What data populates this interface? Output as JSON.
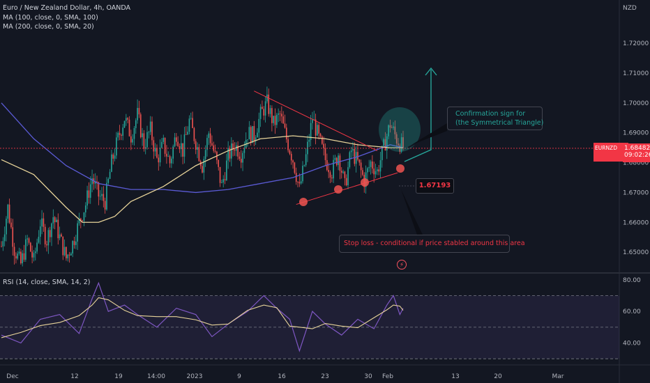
{
  "legend": {
    "title": "Euro / New Zealand Dollar, 4h, OANDA",
    "ma1": "MA (100, close, 0, SMA, 100)",
    "ma2": "MA (200, close, 0, SMA, 20)",
    "rsi": "RSI (14, close, SMA, 14, 2)"
  },
  "currency_label": "NZD",
  "price_badge": {
    "symbol": "EURNZD",
    "price": "1.68482",
    "countdown": "09:02:26"
  },
  "annotations": {
    "confirmation": [
      "Confirmation sign for",
      "(the Symmetrical Triangle)"
    ],
    "stop_loss": "Stop loss - conditional if price stabled around this area",
    "stop_level": "1.67193"
  },
  "colors": {
    "background": "#131722",
    "up": "#26a69a",
    "down": "#ef5350",
    "ma100": "#e8d49a",
    "ma200": "#5b5bd6",
    "rsi_line": "#7e57c2",
    "rsi_ma": "#e8d49a",
    "triangle": "#f23645",
    "arrow": "#26a69a",
    "circle_fill": "#26a69a"
  },
  "chart_data": {
    "type": "candlestick",
    "symbol": "EURNZD",
    "timeframe": "4h",
    "x_tick_labels": [
      "Dec",
      "12",
      "19",
      "14:00",
      "2023",
      "9",
      "16",
      "23",
      "30",
      "Feb",
      "13",
      "20",
      "Mar"
    ],
    "price_axis": {
      "ticks": [
        "1.72000",
        "1.71000",
        "1.70000",
        "1.69000",
        "1.68000",
        "1.67000",
        "1.66000",
        "1.65000"
      ],
      "ylim": [
        1.6435,
        1.7345
      ]
    },
    "rsi_axis": {
      "ticks": [
        "80.00",
        "60.00",
        "40.00"
      ],
      "ylim": [
        27,
        83
      ],
      "bands": [
        30,
        50,
        70
      ]
    },
    "close_path": [
      [
        0,
        1.652
      ],
      [
        4,
        1.665
      ],
      [
        8,
        1.651
      ],
      [
        12,
        1.646
      ],
      [
        16,
        1.654
      ],
      [
        20,
        1.647
      ],
      [
        24,
        1.66
      ],
      [
        28,
        1.654
      ],
      [
        32,
        1.662
      ],
      [
        36,
        1.655
      ],
      [
        40,
        1.648
      ],
      [
        44,
        1.653
      ],
      [
        48,
        1.66
      ],
      [
        52,
        1.666
      ],
      [
        56,
        1.675
      ],
      [
        60,
        1.669
      ],
      [
        64,
        1.667
      ],
      [
        68,
        1.68
      ],
      [
        72,
        1.688
      ],
      [
        76,
        1.695
      ],
      [
        80,
        1.689
      ],
      [
        84,
        1.696
      ],
      [
        88,
        1.686
      ],
      [
        92,
        1.691
      ],
      [
        96,
        1.681
      ],
      [
        100,
        1.686
      ],
      [
        104,
        1.68
      ],
      [
        108,
        1.69
      ],
      [
        112,
        1.684
      ],
      [
        116,
        1.694
      ],
      [
        120,
        1.687
      ],
      [
        124,
        1.679
      ],
      [
        128,
        1.69
      ],
      [
        132,
        1.682
      ],
      [
        136,
        1.672
      ],
      [
        140,
        1.682
      ],
      [
        144,
        1.686
      ],
      [
        148,
        1.683
      ],
      [
        152,
        1.69
      ],
      [
        156,
        1.689
      ],
      [
        160,
        1.696
      ],
      [
        164,
        1.7
      ],
      [
        168,
        1.693
      ],
      [
        172,
        1.696
      ],
      [
        176,
        1.688
      ],
      [
        180,
        1.681
      ],
      [
        184,
        1.671
      ],
      [
        188,
        1.682
      ],
      [
        192,
        1.695
      ],
      [
        196,
        1.688
      ],
      [
        200,
        1.681
      ],
      [
        204,
        1.677
      ],
      [
        208,
        1.683
      ],
      [
        212,
        1.672
      ],
      [
        216,
        1.684
      ],
      [
        220,
        1.68
      ],
      [
        224,
        1.674
      ],
      [
        228,
        1.68
      ],
      [
        232,
        1.677
      ],
      [
        236,
        1.685
      ],
      [
        240,
        1.693
      ],
      [
        244,
        1.688
      ],
      [
        248,
        1.685
      ]
    ],
    "series": [
      {
        "name": "MA (100, close, 0, SMA, 100)",
        "values": [
          [
            0,
            1.681
          ],
          [
            20,
            1.676
          ],
          [
            40,
            1.665
          ],
          [
            50,
            1.66
          ],
          [
            60,
            1.66
          ],
          [
            70,
            1.662
          ],
          [
            80,
            1.667
          ],
          [
            100,
            1.672
          ],
          [
            120,
            1.679
          ],
          [
            140,
            1.684
          ],
          [
            160,
            1.688
          ],
          [
            180,
            1.689
          ],
          [
            200,
            1.688
          ],
          [
            220,
            1.686
          ],
          [
            240,
            1.685
          ],
          [
            248,
            1.685
          ]
        ]
      },
      {
        "name": "MA (200, close, 0, SMA, 20)",
        "values": [
          [
            0,
            1.7
          ],
          [
            20,
            1.688
          ],
          [
            40,
            1.679
          ],
          [
            60,
            1.673
          ],
          [
            80,
            1.671
          ],
          [
            100,
            1.671
          ],
          [
            120,
            1.67
          ],
          [
            140,
            1.671
          ],
          [
            160,
            1.673
          ],
          [
            180,
            1.675
          ],
          [
            200,
            1.679
          ],
          [
            220,
            1.682
          ],
          [
            240,
            1.686
          ],
          [
            248,
            1.685
          ]
        ]
      },
      {
        "name": "RSI (14, close, SMA, 14, 2)",
        "values": [
          [
            0,
            45
          ],
          [
            12,
            40
          ],
          [
            24,
            55
          ],
          [
            36,
            58
          ],
          [
            48,
            46
          ],
          [
            56,
            68
          ],
          [
            60,
            78
          ],
          [
            66,
            60
          ],
          [
            76,
            64
          ],
          [
            84,
            58
          ],
          [
            96,
            50
          ],
          [
            108,
            62
          ],
          [
            120,
            58
          ],
          [
            130,
            44
          ],
          [
            140,
            52
          ],
          [
            152,
            60
          ],
          [
            162,
            70
          ],
          [
            170,
            62
          ],
          [
            178,
            55
          ],
          [
            184,
            35
          ],
          [
            192,
            60
          ],
          [
            200,
            52
          ],
          [
            210,
            45
          ],
          [
            220,
            55
          ],
          [
            230,
            49
          ],
          [
            238,
            64
          ],
          [
            242,
            70
          ],
          [
            246,
            58
          ],
          [
            248,
            62
          ]
        ]
      }
    ],
    "triangle": {
      "upper": [
        [
          156,
          1.704
        ],
        [
          232,
          1.684
        ]
      ],
      "lower": [
        [
          182,
          1.666
        ],
        [
          236,
          1.678
        ]
      ]
    },
    "stop_loss": 1.67193
  }
}
